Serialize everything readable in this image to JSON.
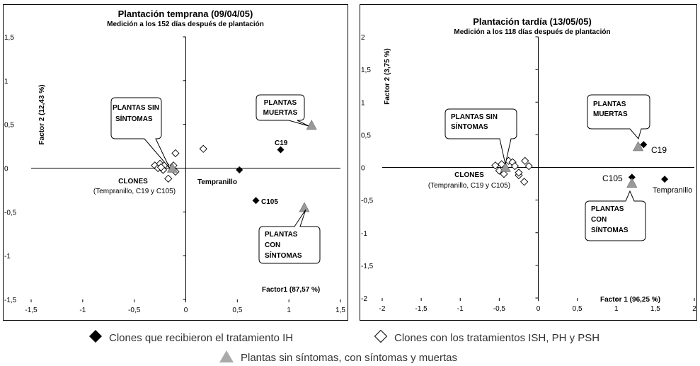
{
  "chart_data": [
    {
      "type": "scatter",
      "title": "Plantación temprana (09/04/05)",
      "subtitle": "Medición a los 152 días después de plantación",
      "xlabel": "Factor1 (87,57 %)",
      "ylabel": "Factor 2 (12,43 %)",
      "xlim": [
        -1.5,
        1.5
      ],
      "ylim": [
        -1.5,
        1.5
      ],
      "xticks": [
        "-1,5",
        "-1",
        "-0,5",
        "0",
        "0,5",
        "1",
        "1,5"
      ],
      "yticks": [
        "1,5",
        "1",
        "0,5",
        "0",
        "-0,5",
        "-1",
        "-1,5"
      ],
      "series": [
        {
          "name": "Clones que recibieron el tratamiento IH",
          "marker": "filled-diamond",
          "points": [
            [
              0.52,
              -0.02
            ],
            [
              0.92,
              0.21
            ],
            [
              0.68,
              -0.37
            ]
          ]
        },
        {
          "name": "Clones con los tratamientos ISH, PH y PSH",
          "marker": "open-diamond",
          "points": [
            [
              -0.3,
              0.03
            ],
            [
              -0.27,
              0.0
            ],
            [
              -0.25,
              0.05
            ],
            [
              -0.22,
              -0.02
            ],
            [
              -0.2,
              0.04
            ],
            [
              -0.17,
              -0.12
            ],
            [
              -0.12,
              0.03
            ],
            [
              -0.1,
              -0.04
            ],
            [
              -0.1,
              0.17
            ],
            [
              0.17,
              0.22
            ],
            [
              -0.24,
              0.01
            ]
          ]
        },
        {
          "name": "Plantas sin síntomas, con síntomas y muertas",
          "marker": "triangle",
          "points": [
            [
              -0.13,
              0.0
            ],
            [
              1.22,
              0.49
            ],
            [
              1.15,
              -0.45
            ]
          ]
        }
      ],
      "annotations": [
        {
          "text": "C19",
          "x": 0.92,
          "y": 0.21
        },
        {
          "text": "Tempranillo",
          "x": 0.52,
          "y": -0.02
        },
        {
          "text": "C105",
          "x": 0.68,
          "y": -0.37
        }
      ],
      "clones_label": [
        "CLONES",
        "(Tempranillo, C19 y C105)"
      ],
      "callouts": [
        {
          "lines": [
            "PLANTAS SIN",
            "SÍNTOMAS"
          ]
        },
        {
          "lines": [
            "PLANTAS",
            "MUERTAS"
          ]
        },
        {
          "lines": [
            "PLANTAS",
            "CON",
            "SÍNTOMAS"
          ]
        }
      ]
    },
    {
      "type": "scatter",
      "title": "Plantación tardía (13/05/05)",
      "subtitle": "Medición a los 118 días después de plantación",
      "xlabel": "Factor 1 (96,25 %)",
      "ylabel": "Factor 2 (3,75 %)",
      "xlim": [
        -2,
        2
      ],
      "ylim": [
        -2,
        2
      ],
      "xticks": [
        "-2",
        "-1,5",
        "-1",
        "-0,5",
        "0",
        "0,5",
        "1",
        "1,5",
        "2"
      ],
      "yticks": [
        "2",
        "1,5",
        "1",
        "0,5",
        "0",
        "-0,5",
        "-1",
        "-1,5",
        "-2"
      ],
      "series": [
        {
          "name": "Clones que recibieron el tratamiento IH",
          "marker": "filled-diamond",
          "points": [
            [
              1.35,
              0.35
            ],
            [
              1.2,
              -0.15
            ],
            [
              1.62,
              -0.18
            ]
          ]
        },
        {
          "name": "Clones con los tratamientos ISH, PH y PSH",
          "marker": "open-diamond",
          "points": [
            [
              -0.55,
              0.03
            ],
            [
              -0.5,
              -0.05
            ],
            [
              -0.47,
              0.05
            ],
            [
              -0.44,
              -0.1
            ],
            [
              -0.38,
              0.1
            ],
            [
              -0.33,
              0.08
            ],
            [
              -0.3,
              0.02
            ],
            [
              -0.25,
              -0.12
            ],
            [
              -0.25,
              -0.08
            ],
            [
              -0.18,
              -0.22
            ],
            [
              -0.17,
              0.1
            ],
            [
              -0.12,
              0.02
            ]
          ]
        },
        {
          "name": "Plantas sin síntomas, con síntomas y muertas",
          "marker": "triangle",
          "points": [
            [
              -0.42,
              0.0
            ],
            [
              1.28,
              0.32
            ],
            [
              1.2,
              -0.24
            ]
          ]
        }
      ],
      "annotations": [
        {
          "text": "C19",
          "x": 1.35,
          "y": 0.35
        },
        {
          "text": "C105",
          "x": 1.2,
          "y": -0.15
        },
        {
          "text": "Tempranillo",
          "x": 1.62,
          "y": -0.18
        }
      ],
      "clones_label": [
        "CLONES",
        "(Tempranillo, C19 y C105)"
      ],
      "callouts": [
        {
          "lines": [
            "PLANTAS SIN",
            "SÍNTOMAS"
          ]
        },
        {
          "lines": [
            "PLANTAS",
            "MUERTAS"
          ]
        },
        {
          "lines": [
            "PLANTAS",
            "CON",
            "SÍNTOMAS"
          ]
        }
      ]
    }
  ],
  "legend": [
    {
      "marker": "filled-diamond",
      "label": "Clones que recibieron el tratamiento IH"
    },
    {
      "marker": "open-diamond",
      "label": "Clones con los tratamientos ISH, PH y PSH"
    },
    {
      "marker": "triangle",
      "label": "Plantas sin síntomas, con síntomas y muertas"
    }
  ],
  "colors": {
    "filled": "#000000",
    "triangle": "#999999",
    "frame": "#000000"
  }
}
